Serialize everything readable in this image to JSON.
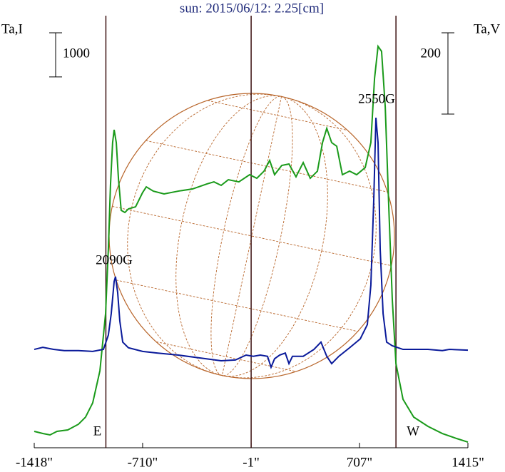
{
  "chart_data": {
    "type": "line",
    "title": "sun: 2015/06/12: 2.25[cm]",
    "ylabel": "Ta,I",
    "y2label": "Ta,V",
    "xlim": [
      -1418,
      1415
    ],
    "xticks": [
      {
        "value": -1418,
        "label": "-1418\""
      },
      {
        "value": -710,
        "label": "-710\""
      },
      {
        "value": -1,
        "label": "-1\""
      },
      {
        "value": 707,
        "label": "707\""
      },
      {
        "value": 1415,
        "label": "1415\""
      }
    ],
    "ylim": [
      0,
      9800
    ],
    "y2lim": [
      0,
      1063
    ],
    "scale_bars": [
      {
        "axis": "y",
        "value": 1000
      },
      {
        "axis": "y2",
        "value": 200
      }
    ],
    "vlines": [
      {
        "value": -950,
        "label": "E"
      },
      {
        "value": -1
      },
      {
        "value": 945,
        "label": "W"
      }
    ],
    "annotations": [
      "2090G",
      "2550G"
    ],
    "series": [
      {
        "name": "I",
        "color": "#1a9a1a",
        "axis": "y",
        "x": [
          -1418,
          -1362,
          -1315,
          -1269,
          -1199,
          -1129,
          -1083,
          -1036,
          -989,
          -952,
          -934,
          -920,
          -906,
          -896,
          -882,
          -868,
          -850,
          -826,
          -803,
          -756,
          -710,
          -686,
          -640,
          -570,
          -477,
          -384,
          -291,
          -244,
          -197,
          -150,
          -81,
          -11,
          36,
          83,
          120,
          152,
          199,
          246,
          292,
          339,
          385,
          432,
          465,
          493,
          525,
          558,
          595,
          642,
          688,
          744,
          781,
          805,
          828,
          851,
          875,
          898,
          921,
          945,
          991,
          1061,
          1154,
          1248,
          1341,
          1415
        ],
        "values": [
          372,
          323,
          291,
          372,
          404,
          534,
          695,
          1019,
          1746,
          3040,
          4495,
          5951,
          6921,
          7212,
          6921,
          6112,
          5385,
          5336,
          5417,
          5465,
          5789,
          5918,
          5821,
          5757,
          5821,
          5870,
          5983,
          6031,
          5951,
          6080,
          6031,
          6193,
          6112,
          6274,
          6517,
          6193,
          6403,
          6436,
          6145,
          6468,
          6112,
          6274,
          6921,
          7244,
          6921,
          6840,
          6193,
          6274,
          6193,
          6355,
          6921,
          8376,
          9104,
          8991,
          7729,
          5465,
          3363,
          1908,
          1100,
          695,
          485,
          323,
          210,
          129
        ]
      },
      {
        "name": "V",
        "color": "#0a1a9a",
        "axis": "y2",
        "x": [
          -1418,
          -1362,
          -1292,
          -1222,
          -1129,
          -1036,
          -966,
          -934,
          -915,
          -896,
          -887,
          -873,
          -859,
          -840,
          -803,
          -710,
          -616,
          -477,
          -337,
          -197,
          -104,
          -34,
          13,
          59,
          106,
          129,
          152,
          185,
          222,
          246,
          269,
          339,
          409,
          455,
          493,
          525,
          572,
          642,
          712,
          758,
          781,
          800,
          814,
          828,
          842,
          861,
          884,
          921,
          991,
          1154,
          1248,
          1294,
          1415
        ],
        "values": [
          242,
          247,
          242,
          239,
          239,
          237,
          242,
          277,
          330,
          409,
          421,
          382,
          312,
          260,
          246,
          237,
          233,
          228,
          221,
          214,
          216,
          228,
          225,
          228,
          225,
          198,
          219,
          228,
          233,
          207,
          225,
          225,
          242,
          260,
          225,
          207,
          225,
          246,
          268,
          303,
          400,
          610,
          812,
          751,
          488,
          330,
          260,
          251,
          242,
          242,
          239,
          242,
          240
        ]
      }
    ]
  }
}
